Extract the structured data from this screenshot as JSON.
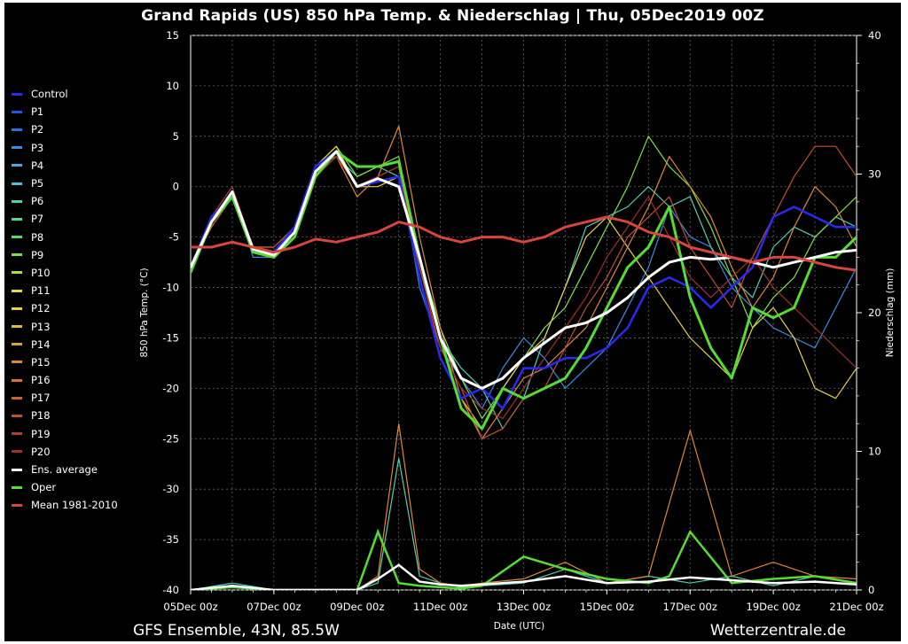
{
  "header": {
    "title": "Grand Rapids  (US)  850 hPa Temp. & Niederschlag | Thu, 05Dec2019 00Z"
  },
  "footer": {
    "left": "GFS Ensemble, 43N, 85.5W",
    "right": "Wetterzentrale.de"
  },
  "colors": {
    "control": "#2a2af0",
    "average": "#ffffff",
    "oper": "#55dd33",
    "mean": "#d8453a"
  },
  "legend": [
    {
      "label": "Control",
      "color": "#2a2af0"
    },
    {
      "label": "P1",
      "color": "#2454e0"
    },
    {
      "label": "P2",
      "color": "#2e6fe0"
    },
    {
      "label": "P3",
      "color": "#3a8ae0"
    },
    {
      "label": "P4",
      "color": "#4aa8e0"
    },
    {
      "label": "P5",
      "color": "#50c0d8"
    },
    {
      "label": "P6",
      "color": "#50d0b0"
    },
    {
      "label": "P7",
      "color": "#50d890"
    },
    {
      "label": "P8",
      "color": "#58dc60"
    },
    {
      "label": "P9",
      "color": "#7ce048"
    },
    {
      "label": "P10",
      "color": "#a8e040"
    },
    {
      "label": "P11",
      "color": "#dce048"
    },
    {
      "label": "P12",
      "color": "#e8d040"
    },
    {
      "label": "P13",
      "color": "#e0b840"
    },
    {
      "label": "P14",
      "color": "#e0a040"
    },
    {
      "label": "P15",
      "color": "#e08838"
    },
    {
      "label": "P16",
      "color": "#d87030"
    },
    {
      "label": "P17",
      "color": "#d06030"
    },
    {
      "label": "P18",
      "color": "#c05030"
    },
    {
      "label": "P19",
      "color": "#b04030"
    },
    {
      "label": "P20",
      "color": "#a03028"
    },
    {
      "label": "Ens. average",
      "color": "#ffffff"
    },
    {
      "label": "Oper",
      "color": "#55dd33"
    },
    {
      "label": "Mean 1981-2010",
      "color": "#d8453a"
    }
  ],
  "chart_data": {
    "type": "line",
    "title": "Grand Rapids  (US)  850 hPa Temp. & Niederschlag | Thu, 05Dec2019 00Z",
    "xlabel": "Date (UTC)",
    "ylabel": "850 hPa Temp. (°C)",
    "y2label": "Niederschlag (mm)",
    "x_days": [
      0,
      2,
      4,
      6,
      8,
      10,
      12,
      14,
      16
    ],
    "x_tick_labels": [
      "05Dec 00z",
      "07Dec 00z",
      "09Dec 00z",
      "11Dec 00z",
      "13Dec 00z",
      "15Dec 00z",
      "17Dec 00z",
      "19Dec 00z",
      "21Dec 00z"
    ],
    "xlim": [
      0,
      16
    ],
    "ylim": [
      -40,
      15
    ],
    "y_ticks": [
      -40,
      -35,
      -30,
      -25,
      -20,
      -15,
      -10,
      -5,
      0,
      5,
      10,
      15
    ],
    "y2lim": [
      0,
      40
    ],
    "y2_ticks": [
      0,
      10,
      20,
      30,
      40
    ],
    "grid": true,
    "series": [
      {
        "name": "Control",
        "color": "#2a2af0",
        "width": 2.5,
        "x": [
          0,
          0.5,
          1,
          1.5,
          2,
          2.5,
          3,
          3.5,
          4,
          4.5,
          5,
          5.5,
          6,
          6.5,
          7,
          7.5,
          8,
          8.5,
          9,
          9.5,
          10,
          10.5,
          11,
          11.5,
          12,
          12.5,
          13,
          13.5,
          14,
          14.5,
          15,
          15.5,
          16
        ],
        "y": [
          -8,
          -3,
          -1,
          -6,
          -6.5,
          -4,
          2,
          3.5,
          0,
          0.5,
          1,
          -9,
          -17,
          -21,
          -20,
          -22,
          -18,
          -18,
          -17,
          -17,
          -16,
          -14,
          -10,
          -9,
          -10,
          -12,
          -10,
          -8,
          -3,
          -2,
          -3,
          -4,
          -4
        ]
      },
      {
        "name": "P3",
        "color": "#3a8ae0",
        "width": 1.2,
        "x": [
          0,
          0.5,
          1,
          1.5,
          2,
          2.5,
          3,
          3.5,
          4,
          4.5,
          5,
          5.5,
          6,
          6.5,
          7,
          7.5,
          8,
          8.5,
          9,
          9.5,
          10,
          10.5,
          11,
          11.5,
          12,
          12.5,
          13,
          13.5,
          14,
          14.5,
          15,
          15.5,
          16
        ],
        "y": [
          -8,
          -3,
          0,
          -7,
          -7,
          -4,
          2,
          3,
          0,
          1,
          2,
          -10,
          -16,
          -19,
          -22,
          -18,
          -15,
          -17,
          -20,
          -18,
          -16,
          -12,
          -8,
          -2,
          -5,
          -6,
          -10,
          -12,
          -14,
          -15,
          -16,
          -12,
          -8
        ]
      },
      {
        "name": "P6",
        "color": "#50d0b0",
        "width": 1.2,
        "x": [
          0,
          0.5,
          1,
          1.5,
          2,
          2.5,
          3,
          3.5,
          4,
          4.5,
          5,
          5.5,
          6,
          6.5,
          7,
          7.5,
          8,
          8.5,
          9,
          9.5,
          10,
          10.5,
          11,
          11.5,
          12,
          12.5,
          13,
          13.5,
          14,
          14.5,
          15,
          15.5,
          16
        ],
        "y": [
          -8,
          -4,
          -1,
          -6,
          -7,
          -5,
          1,
          3,
          1,
          2,
          1,
          -8,
          -15,
          -18,
          -20,
          -24,
          -21,
          -15,
          -10,
          -4,
          -3,
          -2,
          0,
          -2,
          -1,
          -6,
          -9,
          -11,
          -6,
          -4,
          -5,
          -3,
          -4
        ]
      },
      {
        "name": "P9",
        "color": "#7ce048",
        "width": 1.2,
        "x": [
          0,
          0.5,
          1,
          1.5,
          2,
          2.5,
          3,
          3.5,
          4,
          4.5,
          5,
          5.5,
          6,
          6.5,
          7,
          7.5,
          8,
          8.5,
          9,
          9.5,
          10,
          10.5,
          11,
          11.5,
          12,
          12.5,
          13,
          13.5,
          14,
          14.5,
          15,
          15.5,
          16
        ],
        "y": [
          -8,
          -3,
          -1,
          -6,
          -6,
          -4,
          2,
          4,
          1,
          2,
          3,
          -7,
          -14,
          -19,
          -23,
          -20,
          -17,
          -14,
          -12,
          -8,
          -4,
          0,
          5,
          2,
          0,
          -4,
          -9,
          -14,
          -11,
          -9,
          -5,
          -3,
          -1
        ]
      },
      {
        "name": "P12",
        "color": "#e8d040",
        "width": 1.2,
        "x": [
          0,
          0.5,
          1,
          1.5,
          2,
          2.5,
          3,
          3.5,
          4,
          4.5,
          5,
          5.5,
          6,
          6.5,
          7,
          7.5,
          8,
          8.5,
          9,
          9.5,
          10,
          10.5,
          11,
          11.5,
          12,
          12.5,
          13,
          13.5,
          14,
          14.5,
          15,
          15.5,
          16
        ],
        "y": [
          -8,
          -3,
          -1,
          -6,
          -7,
          -5,
          2,
          4,
          0,
          0,
          1,
          -9,
          -17,
          -21,
          -24,
          -20,
          -17,
          -15,
          -10,
          -5,
          -3,
          -6,
          -9,
          -12,
          -15,
          -17,
          -19,
          -14,
          -12,
          -15,
          -20,
          -21,
          -18
        ]
      },
      {
        "name": "P15",
        "color": "#e08838",
        "width": 1.2,
        "x": [
          0,
          0.5,
          1,
          1.5,
          2,
          2.5,
          3,
          3.5,
          4,
          4.5,
          5,
          5.5,
          6,
          6.5,
          7,
          7.5,
          8,
          8.5,
          9,
          9.5,
          10,
          10.5,
          11,
          11.5,
          12,
          12.5,
          13,
          13.5,
          14,
          14.5,
          15,
          15.5,
          16
        ],
        "y": [
          -8,
          -4,
          -1,
          -6,
          -7,
          -5,
          1,
          3,
          -1,
          1,
          6,
          -5,
          -14,
          -21,
          -25,
          -22,
          -19,
          -18,
          -16,
          -14,
          -10,
          -6,
          -2,
          3,
          0,
          -3,
          -8,
          -12,
          -9,
          -4,
          0,
          -2,
          -6
        ]
      },
      {
        "name": "P18",
        "color": "#c05030",
        "width": 1.2,
        "x": [
          0,
          0.5,
          1,
          1.5,
          2,
          2.5,
          3,
          3.5,
          4,
          4.5,
          5,
          5.5,
          6,
          6.5,
          7,
          7.5,
          8,
          8.5,
          9,
          9.5,
          10,
          10.5,
          11,
          11.5,
          12,
          12.5,
          13,
          13.5,
          14,
          14.5,
          15,
          15.5,
          16
        ],
        "y": [
          -8,
          -4,
          -1,
          -6,
          -6,
          -4,
          2,
          3,
          0,
          1,
          2,
          -8,
          -16,
          -20,
          -25,
          -24,
          -21,
          -20,
          -16,
          -12,
          -9,
          -5,
          -3,
          -1,
          -6,
          -9,
          -12,
          -7,
          -3,
          1,
          4,
          4,
          1
        ]
      },
      {
        "name": "P20",
        "color": "#a03028",
        "width": 1.2,
        "x": [
          0,
          0.5,
          1,
          1.5,
          2,
          2.5,
          3,
          3.5,
          4,
          4.5,
          5,
          5.5,
          6,
          6.5,
          7,
          7.5,
          8,
          8.5,
          9,
          9.5,
          10,
          10.5,
          11,
          11.5,
          12,
          12.5,
          13,
          13.5,
          14,
          14.5,
          15,
          15.5,
          16
        ],
        "y": [
          -8,
          -3,
          0,
          -6,
          -7,
          -5,
          1,
          3,
          0,
          1,
          2,
          -9,
          -16,
          -20,
          -22,
          -23,
          -20,
          -17,
          -14,
          -11,
          -7,
          -4,
          -1,
          -5,
          -9,
          -11,
          -9,
          -7,
          -10,
          -12,
          -14,
          -16,
          -18
        ]
      },
      {
        "name": "Oper",
        "color": "#55dd33",
        "width": 3,
        "x": [
          0,
          0.5,
          1,
          1.5,
          2,
          2.5,
          3,
          3.5,
          4,
          4.5,
          5,
          5.5,
          6,
          6.5,
          7,
          7.5,
          8,
          8.5,
          9,
          9.5,
          10,
          10.5,
          11,
          11.5,
          12,
          12.5,
          13,
          13.5,
          14,
          14.5,
          15,
          15.5,
          16
        ],
        "y": [
          -8.5,
          -3.5,
          -1,
          -6.5,
          -7,
          -5,
          1,
          3.5,
          2,
          2,
          2.5,
          -7,
          -15,
          -22,
          -24,
          -20,
          -21,
          -20,
          -19,
          -16,
          -12,
          -8,
          -6,
          -2,
          -11,
          -16,
          -19,
          -12,
          -13,
          -12,
          -7,
          -7,
          -5
        ]
      },
      {
        "name": "Ens. average",
        "color": "#ffffff",
        "width": 3,
        "x": [
          0,
          0.5,
          1,
          1.5,
          2,
          2.5,
          3,
          3.5,
          4,
          4.5,
          5,
          5.5,
          6,
          6.5,
          7,
          7.5,
          8,
          8.5,
          9,
          9.5,
          10,
          10.5,
          11,
          11.5,
          12,
          12.5,
          13,
          13.5,
          14,
          14.5,
          15,
          15.5,
          16
        ],
        "y": [
          -8,
          -3.5,
          -0.5,
          -6.2,
          -6.8,
          -4.5,
          1.5,
          3.5,
          0,
          0.8,
          0,
          -7,
          -15,
          -19,
          -20,
          -19,
          -17,
          -15.5,
          -14,
          -13.5,
          -12.5,
          -11,
          -9,
          -7.5,
          -7,
          -7.2,
          -7,
          -7.5,
          -8,
          -7.5,
          -7,
          -6.5,
          -6.3
        ]
      },
      {
        "name": "Mean 1981-2010",
        "color": "#d8453a",
        "width": 3,
        "x": [
          0,
          0.5,
          1,
          1.5,
          2,
          2.5,
          3,
          3.5,
          4,
          4.5,
          5,
          5.5,
          6,
          6.5,
          7,
          7.5,
          8,
          8.5,
          9,
          9.5,
          10,
          10.5,
          11,
          11.5,
          12,
          12.5,
          13,
          13.5,
          14,
          14.5,
          15,
          15.5,
          16
        ],
        "y": [
          -6,
          -6,
          -5.5,
          -6,
          -6.5,
          -6,
          -5.2,
          -5.5,
          -5,
          -4.5,
          -3.5,
          -4,
          -5,
          -5.5,
          -5,
          -5,
          -5.5,
          -5,
          -4,
          -3.5,
          -3,
          -3.5,
          -4.5,
          -5,
          -6,
          -6.5,
          -7,
          -7.5,
          -7,
          -7,
          -7.5,
          -8,
          -8.3
        ]
      }
    ],
    "precipitation_series": [
      {
        "name": "P6 precip",
        "color": "#50d0b0",
        "x": [
          0,
          1,
          2,
          3,
          4,
          4.5,
          5,
          5.5,
          6,
          6.5,
          7,
          8,
          9,
          10,
          11,
          12,
          13,
          14,
          15,
          16
        ],
        "y_mm": [
          0,
          0.5,
          0,
          0,
          0,
          0.5,
          9.5,
          1,
          0.5,
          0.2,
          0.3,
          0.5,
          1.5,
          0.5,
          1,
          0.5,
          1,
          0.3,
          1,
          0.5
        ]
      },
      {
        "name": "P15 precip",
        "color": "#e08838",
        "x": [
          0,
          1,
          2,
          3,
          4,
          4.5,
          5,
          5.5,
          6,
          6.5,
          7,
          8,
          9,
          10,
          11,
          12,
          13,
          14,
          15,
          16
        ],
        "y_mm": [
          0,
          0.3,
          0,
          0,
          0,
          1,
          12,
          1.5,
          0.5,
          0.3,
          0.5,
          0.8,
          2,
          0.5,
          1,
          11.5,
          1,
          2,
          1,
          0.8
        ]
      },
      {
        "name": "Oper precip",
        "color": "#55dd33",
        "x": [
          0,
          1,
          2,
          3,
          4,
          4.5,
          5,
          5.5,
          6,
          6.5,
          7,
          8,
          9,
          10,
          11,
          11.5,
          12,
          13,
          14,
          15,
          16
        ],
        "y_mm": [
          0,
          0.2,
          0,
          0,
          0,
          4.2,
          0.5,
          0.3,
          0.2,
          0.1,
          0.3,
          2.4,
          1.5,
          0.8,
          0.5,
          1,
          4.2,
          0.5,
          0.8,
          1,
          0.5
        ]
      },
      {
        "name": "Ens. average precip",
        "color": "#ffffff",
        "x": [
          0,
          1,
          2,
          3,
          4,
          4.5,
          5,
          5.5,
          6,
          6.5,
          7,
          8,
          9,
          10,
          11,
          12,
          13,
          14,
          15,
          16
        ],
        "y_mm": [
          0,
          0.3,
          0,
          0,
          0,
          0.8,
          1.8,
          0.6,
          0.4,
          0.3,
          0.4,
          0.6,
          1,
          0.5,
          0.6,
          0.9,
          0.7,
          0.5,
          0.6,
          0.4
        ]
      }
    ]
  }
}
